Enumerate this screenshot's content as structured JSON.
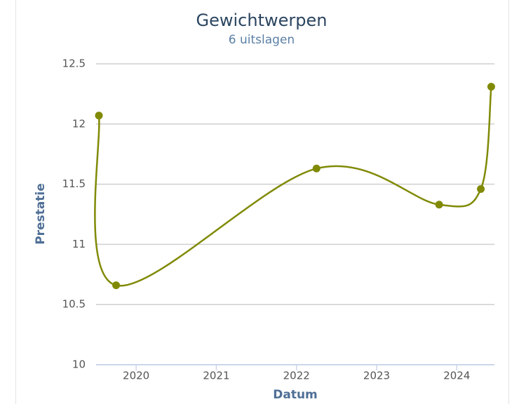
{
  "chart_data": {
    "type": "line",
    "title": "Gewichtwerpen",
    "subtitle": "6 uitslagen",
    "x_label": "Datum",
    "y_label": "Prestatie",
    "x": [
      2019.535,
      2019.75,
      2022.25,
      2023.78,
      2024.3,
      2024.43
    ],
    "series": [
      {
        "name": "Prestatie",
        "color": "#808a05",
        "values": [
          12.07,
          10.66,
          11.63,
          11.33,
          11.46,
          12.31
        ]
      }
    ],
    "xlim": [
      2019.5,
      2024.47
    ],
    "xticks": [
      2020,
      2021,
      2022,
      2023,
      2024
    ],
    "ylim": [
      10,
      12.5
    ],
    "yticks": [
      10,
      10.5,
      11,
      11.5,
      12,
      12.5
    ],
    "grid": true
  }
}
